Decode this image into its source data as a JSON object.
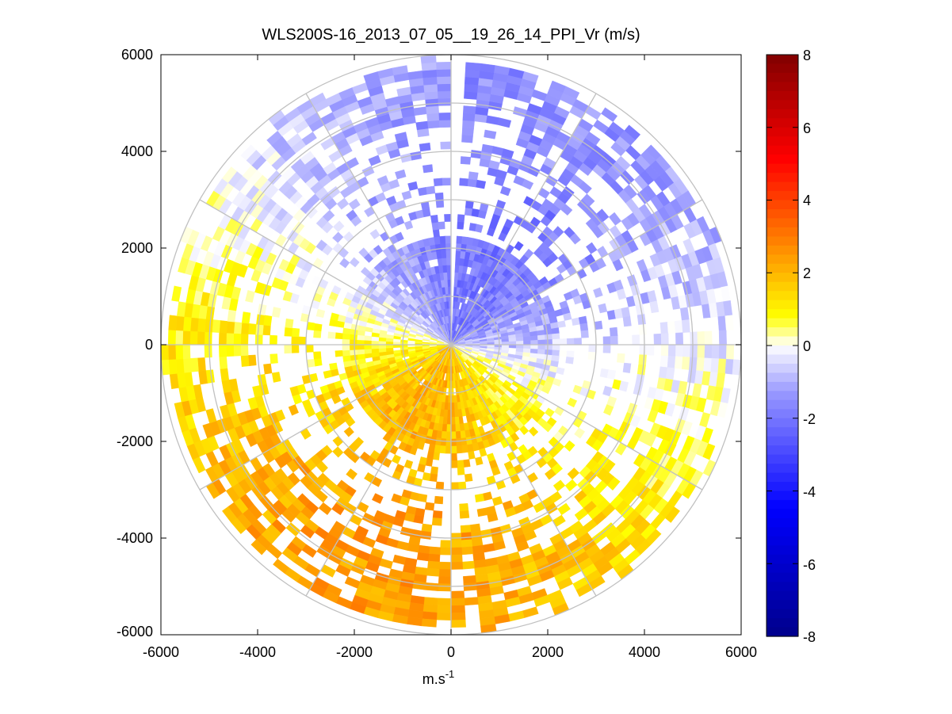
{
  "chart_data": {
    "type": "heatmap",
    "subtype": "polar-ppi",
    "title": "WLS200S-16_2013_07_05__19_26_14_PPI_Vr (m/s)",
    "xlabel_base": "m.s",
    "xlabel_exp": "-1",
    "ylabel": "",
    "xlim": [
      -6000,
      6000
    ],
    "ylim": [
      -6000,
      6000
    ],
    "xticks": [
      -6000,
      -4000,
      -2000,
      0,
      2000,
      4000,
      6000
    ],
    "yticks": [
      -6000,
      -4000,
      -2000,
      0,
      2000,
      4000,
      6000
    ],
    "xtick_labels": [
      "-6000",
      "-4000",
      "-2000",
      "0",
      "2000",
      "4000",
      "6000"
    ],
    "ytick_labels": [
      "6000",
      "4000",
      "2000",
      "0",
      "-2000",
      "-4000",
      "-6000"
    ],
    "grid_rings": [
      1000,
      2000,
      3000,
      4000,
      5000,
      6000
    ],
    "grid_spoke_angles_deg": [
      0,
      30,
      60,
      90,
      120,
      150,
      180,
      210,
      240,
      270,
      300,
      330
    ],
    "field_description": "Radial velocity: negative (blue) in northern half, positive (yellow/orange) in southern half",
    "field_sectors": [
      {
        "az_from": 0,
        "az_to": 90,
        "mean_value": -1.2
      },
      {
        "az_from": 90,
        "az_to": 180,
        "mean_value": 1.5
      },
      {
        "az_from": 180,
        "az_to": 270,
        "mean_value": 2.2
      },
      {
        "az_from": 270,
        "az_to": 360,
        "mean_value": -1.8
      }
    ],
    "empty_sector_az": [
      -2,
      2
    ],
    "colorbar": {
      "min": -8,
      "max": 8,
      "ticks": [
        8,
        6,
        4,
        2,
        0,
        -2,
        -4,
        -6,
        -8
      ],
      "tick_labels": [
        "8",
        "6",
        "4",
        "2",
        "0",
        "-2",
        "-4",
        "-6",
        "-8"
      ],
      "colors": [
        "#00008b",
        "#0000ff",
        "#9a9aff",
        "#ffffff",
        "#ffff00",
        "#ff8000",
        "#ff0000",
        "#800000"
      ]
    }
  }
}
